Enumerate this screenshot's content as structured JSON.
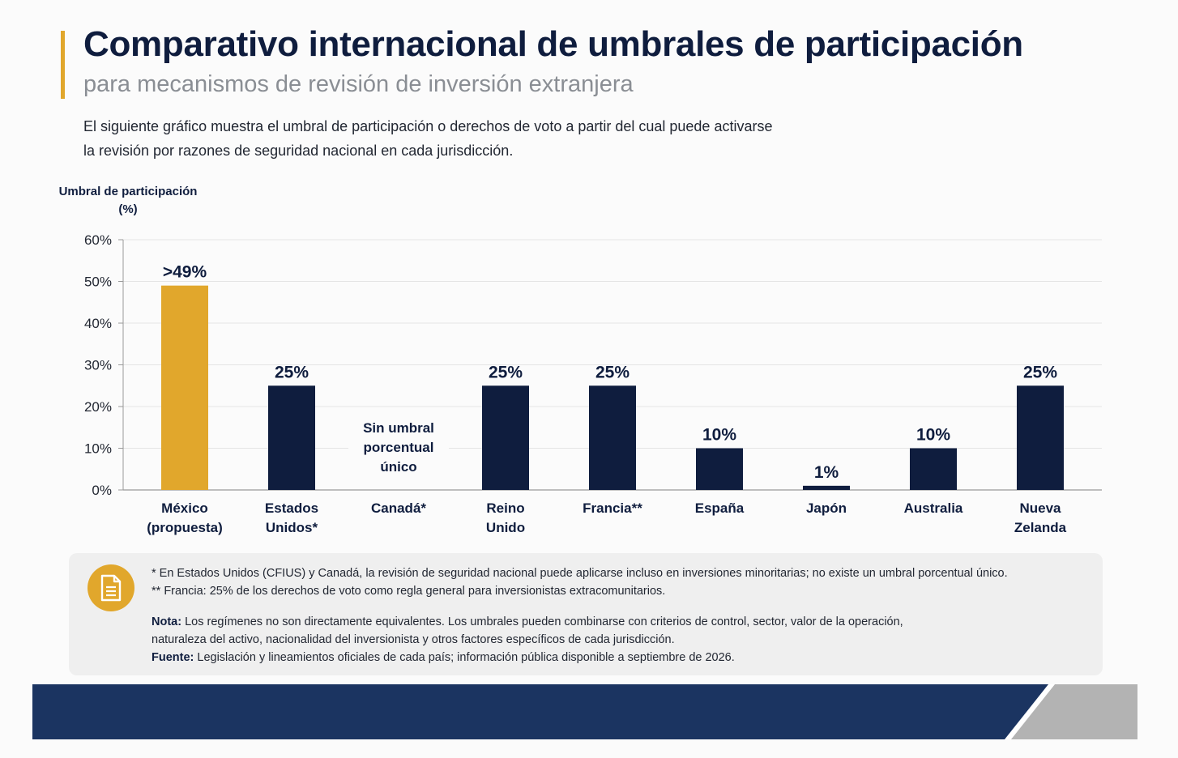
{
  "header": {
    "title": "Comparativo internacional de umbrales de participación",
    "subtitle": "para mecanismos de revisión de inversión extranjera",
    "description_line1": "El siguiente gráfico muestra el umbral de participación o derechos de voto a partir del cual puede activarse",
    "description_line2": "la revisión por razones de seguridad nacional en cada jurisdicción."
  },
  "colors": {
    "accent": "#e1a72c",
    "bar_primary": "#0f1d3e",
    "footer_band": "#1b3461",
    "footer_stripe": "#b3b3b3"
  },
  "chart_data": {
    "type": "bar",
    "ylabel_line1": "Umbral de participación",
    "ylabel_line2": "(%)",
    "ylim": [
      0,
      60
    ],
    "yticks": [
      0,
      10,
      20,
      30,
      40,
      50,
      60
    ],
    "ytick_labels": [
      "0%",
      "10%",
      "20%",
      "30%",
      "40%",
      "50%",
      "60%"
    ],
    "grid": true,
    "categories": [
      [
        "México",
        "(propuesta)"
      ],
      [
        "Estados",
        "Unidos*"
      ],
      [
        "Canadá*"
      ],
      [
        "Reino",
        "Unido"
      ],
      [
        "Francia**"
      ],
      [
        "España"
      ],
      [
        "Japón"
      ],
      [
        "Australia"
      ],
      [
        "Nueva",
        "Zelanda"
      ]
    ],
    "values": [
      49,
      25,
      null,
      25,
      25,
      10,
      1,
      10,
      25
    ],
    "value_labels": [
      ">49%",
      "25%",
      "",
      "25%",
      "25%",
      "10%",
      "1%",
      "10%",
      "25%"
    ],
    "highlight_index": 0,
    "no_threshold_index": 2,
    "no_threshold_label": [
      "Sin umbral",
      "porcentual",
      "único"
    ]
  },
  "notes": {
    "footnote1": "* En Estados Unidos (CFIUS) y Canadá, la revisión de seguridad nacional puede aplicarse incluso en inversiones minoritarias; no existe un umbral porcentual único.",
    "footnote2": "** Francia: 25% de los derechos de voto como regla general para inversionistas extracomunitarios.",
    "nota_label": "Nota:",
    "nota_line1": " Los regímenes no son directamente equivalentes. Los umbrales pueden combinarse con criterios de control, sector, valor de la operación,",
    "nota_line2": "naturaleza del activo, nacionalidad del inversionista y otros factores específicos de cada jurisdicción.",
    "fuente_label": "Fuente:",
    "fuente_text": " Legislación y lineamientos oficiales de cada país; información pública disponible a septiembre de 2026.",
    "icon": "document-icon"
  }
}
